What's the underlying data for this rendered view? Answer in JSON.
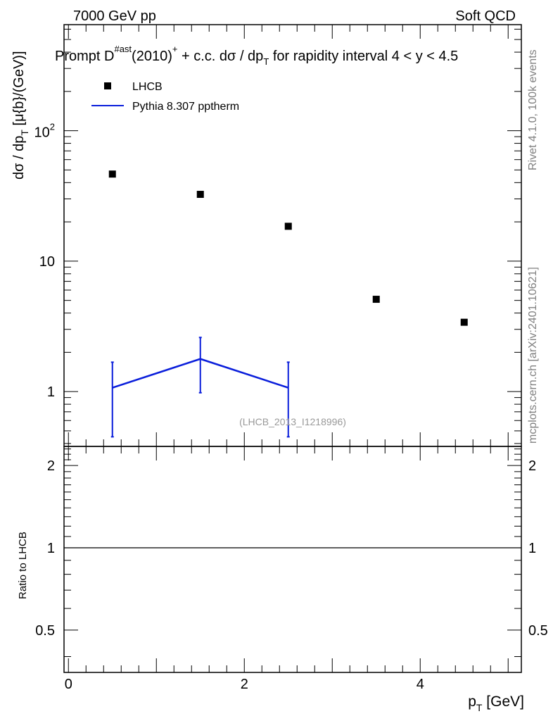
{
  "header": {
    "energy_label": "7000 GeV pp",
    "category_label": "Soft QCD"
  },
  "side_text": {
    "version": "Rivet 4.1.0,  100k events",
    "source": "mcplots.cern.ch [arXiv:2401.10621]"
  },
  "chart_data": [
    {
      "type": "scatter",
      "title_parts": {
        "prefix": "Prompt D",
        "superscript": "#ast",
        "middle": "(2010)",
        "charge": "+",
        "rest": " + c.c.  dσ / dp",
        "subscript": "T",
        "suffix": " for rapidity interval 4 < y < 4.5"
      },
      "ylabel_parts": {
        "main": "dσ / dp",
        "subscript": "T",
        "unit": " [μ{b}/(GeV)]"
      },
      "yscale": "log",
      "ylim": [
        0.38,
        650
      ],
      "xlim": [
        -0.05,
        5.15
      ],
      "y_ticks": [
        {
          "value": 1,
          "base": "1",
          "exp": ""
        },
        {
          "value": 10,
          "base": "10",
          "exp": ""
        },
        {
          "value": 100,
          "base": "10",
          "exp": "2"
        }
      ],
      "legend_position": "top-left",
      "series": [
        {
          "name": "LHCB",
          "kind": "markers",
          "color": "#000000",
          "x": [
            0.5,
            1.5,
            2.5,
            3.5,
            4.5
          ],
          "y": [
            46.5,
            32.5,
            18.5,
            5.1,
            3.4
          ]
        },
        {
          "name": "Pythia 8.307 pptherm",
          "kind": "line_errorbars",
          "color": "#0a1edb",
          "x": [
            0.5,
            1.5,
            2.5
          ],
          "y": [
            1.07,
            1.78,
            1.07
          ],
          "yerr_low": [
            0.45,
            0.98,
            0.45
          ],
          "yerr_high": [
            1.68,
            2.6,
            1.68
          ]
        }
      ],
      "annotation": "(LHCB_2013_I1218996)"
    },
    {
      "type": "line",
      "ylabel": "Ratio to LHCB",
      "ylim": [
        0.35,
        2.35
      ],
      "y_ticks": [
        {
          "value": 0.5,
          "label": "0.5"
        },
        {
          "value": 1,
          "label": "1"
        },
        {
          "value": 2,
          "label": "2"
        }
      ],
      "x_ticks": [
        {
          "value": 0,
          "label": "0"
        },
        {
          "value": 2,
          "label": "2"
        },
        {
          "value": 4,
          "label": "4"
        }
      ],
      "xlabel_parts": {
        "main": "p",
        "subscript": "T",
        "unit": " [GeV]"
      },
      "reference_line": 1
    }
  ]
}
